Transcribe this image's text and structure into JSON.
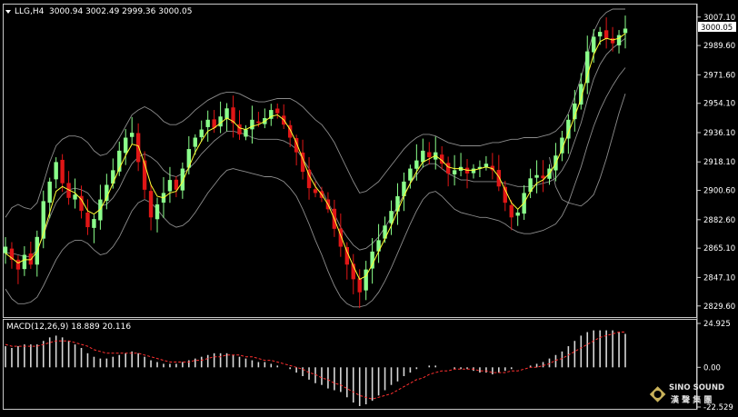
{
  "chart_data": [
    {
      "type": "candlestick",
      "title": "LLG,H4",
      "ohlc_label": "3000.94 3002.49 2999.36 3000.05",
      "current_price_label": "3000.05",
      "ylim": [
        2825,
        3012
      ],
      "y_ticks": [
        "3007.10",
        "2989.60",
        "2971.60",
        "2954.10",
        "2936.10",
        "2918.10",
        "2900.60",
        "2882.60",
        "2865.10",
        "2847.10",
        "2829.60"
      ],
      "close": [
        2866,
        2858,
        2852,
        2861,
        2855,
        2872,
        2894,
        2906,
        2918,
        2905,
        2896,
        2898,
        2888,
        2878,
        2883,
        2895,
        2904,
        2913,
        2925,
        2933,
        2936,
        2918,
        2901,
        2884,
        2892,
        2899,
        2907,
        2901,
        2914,
        2926,
        2933,
        2938,
        2944,
        2939,
        2946,
        2951,
        2942,
        2935,
        2938,
        2944,
        2942,
        2945,
        2950,
        2948,
        2941,
        2933,
        2924,
        2912,
        2902,
        2899,
        2896,
        2889,
        2877,
        2866,
        2855,
        2846,
        2838,
        2852,
        2863,
        2870,
        2879,
        2888,
        2897,
        2906,
        2914,
        2919,
        2925,
        2921,
        2924,
        2917,
        2911,
        2913,
        2915,
        2911,
        2914,
        2915,
        2917,
        2913,
        2903,
        2893,
        2884,
        2887,
        2899,
        2908,
        2910,
        2908,
        2914,
        2922,
        2933,
        2944,
        2954,
        2966,
        2986,
        2995,
        2998,
        2994,
        2991,
        2996,
        3000
      ],
      "ma_yellow": [
        2862,
        2859,
        2856,
        2858,
        2858,
        2863,
        2874,
        2887,
        2900,
        2903,
        2901,
        2899,
        2895,
        2888,
        2886,
        2889,
        2896,
        2905,
        2914,
        2922,
        2929,
        2928,
        2917,
        2904,
        2897,
        2896,
        2899,
        2900,
        2906,
        2915,
        2924,
        2931,
        2937,
        2939,
        2942,
        2945,
        2943,
        2939,
        2938,
        2940,
        2941,
        2943,
        2946,
        2947,
        2944,
        2938,
        2930,
        2920,
        2910,
        2903,
        2898,
        2892,
        2883,
        2873,
        2863,
        2854,
        2846,
        2848,
        2855,
        2863,
        2871,
        2879,
        2888,
        2897,
        2905,
        2912,
        2918,
        2920,
        2922,
        2919,
        2915,
        2914,
        2914,
        2913,
        2913,
        2914,
        2915,
        2914,
        2909,
        2901,
        2893,
        2889,
        2893,
        2900,
        2905,
        2907,
        2911,
        2917,
        2926,
        2936,
        2946,
        2957,
        2971,
        2984,
        2992,
        2994,
        2993,
        2994,
        2997
      ],
      "bb_upper": [
        2884,
        2890,
        2892,
        2890,
        2889,
        2893,
        2905,
        2918,
        2928,
        2932,
        2934,
        2934,
        2933,
        2930,
        2925,
        2922,
        2923,
        2927,
        2933,
        2940,
        2947,
        2950,
        2952,
        2950,
        2947,
        2943,
        2941,
        2941,
        2943,
        2946,
        2950,
        2953,
        2956,
        2958,
        2960,
        2961,
        2961,
        2960,
        2958,
        2956,
        2955,
        2955,
        2956,
        2957,
        2957,
        2957,
        2955,
        2952,
        2948,
        2944,
        2941,
        2936,
        2930,
        2922,
        2914,
        2906,
        2899,
        2900,
        2903,
        2906,
        2911,
        2916,
        2921,
        2926,
        2930,
        2933,
        2935,
        2935,
        2934,
        2932,
        2930,
        2929,
        2928,
        2928,
        2928,
        2928,
        2929,
        2930,
        2930,
        2931,
        2932,
        2932,
        2933,
        2933,
        2933,
        2934,
        2935,
        2937,
        2941,
        2948,
        2958,
        2970,
        2984,
        2998,
        3006,
        3010,
        3012,
        3012,
        3012
      ],
      "bb_lower": [
        2840,
        2834,
        2831,
        2831,
        2832,
        2835,
        2842,
        2850,
        2858,
        2864,
        2868,
        2870,
        2870,
        2868,
        2864,
        2861,
        2862,
        2866,
        2872,
        2880,
        2888,
        2893,
        2895,
        2893,
        2889,
        2884,
        2880,
        2878,
        2879,
        2882,
        2887,
        2893,
        2899,
        2904,
        2909,
        2913,
        2914,
        2913,
        2912,
        2911,
        2910,
        2909,
        2909,
        2908,
        2906,
        2902,
        2897,
        2889,
        2880,
        2870,
        2861,
        2851,
        2842,
        2835,
        2831,
        2829,
        2829,
        2830,
        2833,
        2838,
        2845,
        2853,
        2862,
        2871,
        2880,
        2888,
        2895,
        2899,
        2900,
        2897,
        2893,
        2889,
        2887,
        2886,
        2885,
        2884,
        2884,
        2883,
        2882,
        2880,
        2877,
        2875,
        2874,
        2874,
        2875,
        2876,
        2878,
        2880,
        2885,
        2893,
        2904,
        2915,
        2928,
        2940,
        2950,
        2958,
        2965,
        2971,
        2976
      ],
      "bb_mid": [
        2862,
        2862,
        2861,
        2860,
        2860,
        2864,
        2873,
        2884,
        2893,
        2898,
        2901,
        2902,
        2901,
        2899,
        2894,
        2891,
        2892,
        2896,
        2902,
        2910,
        2917,
        2921,
        2923,
        2921,
        2918,
        2913,
        2910,
        2909,
        2911,
        2914,
        2918,
        2923,
        2927,
        2931,
        2934,
        2937,
        2937,
        2936,
        2935,
        2933,
        2932,
        2932,
        2932,
        2932,
        2931,
        2929,
        2926,
        2920,
        2914,
        2907,
        2901,
        2893,
        2886,
        2878,
        2872,
        2867,
        2864,
        2865,
        2868,
        2872,
        2878,
        2884,
        2891,
        2898,
        2905,
        2910,
        2915,
        2917,
        2917,
        2914,
        2911,
        2909,
        2907,
        2907,
        2906,
        2906,
        2906,
        2906,
        2906,
        2905,
        2904,
        2903,
        2903,
        2903,
        2904,
        2905,
        2906,
        2908,
        2913,
        2920,
        2931,
        2942,
        2956,
        2969,
        2978,
        2984,
        2988,
        2991,
        2994
      ],
      "bb_lower_tail": [
        2921,
        2903,
        2895,
        2893,
        2892,
        2891,
        2894,
        2898,
        2908,
        2920,
        2934,
        2948,
        2960
      ]
    },
    {
      "type": "macd",
      "title": "MACD(12,26,9) 18.889 20.116",
      "ylim": [
        -22.529,
        24.925
      ],
      "y_ticks": [
        "24.925",
        "0.00",
        "-22.529"
      ],
      "macd": [
        12,
        11,
        12,
        13,
        13,
        13,
        15,
        17,
        18,
        17,
        15,
        13,
        11,
        8,
        6,
        5,
        5,
        6,
        7,
        8,
        9,
        8,
        6,
        4,
        3,
        2,
        2,
        2,
        3,
        4,
        5,
        6,
        7,
        8,
        8,
        8,
        7,
        6,
        5,
        4,
        3,
        3,
        2,
        1,
        0,
        -1,
        -3,
        -5,
        -7,
        -9,
        -10,
        -12,
        -13,
        -14,
        -17,
        -20,
        -22,
        -21,
        -19,
        -16,
        -13,
        -10,
        -8,
        -5,
        -3,
        -1,
        0,
        1,
        1,
        0,
        0,
        -1,
        -1,
        -1,
        -2,
        -3,
        -3,
        -4,
        -3,
        -2,
        -1,
        0,
        0,
        1,
        2,
        3,
        5,
        7,
        9,
        12,
        15,
        18,
        20,
        21,
        21,
        21,
        21,
        20,
        19
      ],
      "signal": [
        13,
        12,
        12,
        12,
        12,
        12,
        13,
        14,
        15,
        15,
        15,
        14,
        13,
        12,
        10,
        9,
        8,
        8,
        8,
        8,
        8,
        8,
        7,
        6,
        5,
        4,
        3,
        3,
        3,
        3,
        4,
        4,
        5,
        6,
        6,
        7,
        7,
        7,
        6,
        6,
        5,
        4,
        4,
        3,
        2,
        1,
        0,
        -1,
        -3,
        -4,
        -6,
        -7,
        -9,
        -10,
        -12,
        -14,
        -16,
        -17,
        -18,
        -17,
        -16,
        -15,
        -13,
        -11,
        -9,
        -7,
        -6,
        -4,
        -3,
        -2,
        -2,
        -1,
        -1,
        -1,
        -1,
        -2,
        -2,
        -3,
        -3,
        -3,
        -2,
        -2,
        -1,
        0,
        0,
        1,
        2,
        4,
        5,
        7,
        9,
        11,
        13,
        15,
        17,
        18,
        19,
        20,
        20
      ]
    }
  ],
  "watermark": {
    "brand": "SINO SOUND",
    "cn": "漢 聲 集 團"
  },
  "colors": {
    "bull": "#8bff8b",
    "bear": "#e01616",
    "ma": "#ffff33",
    "bands": "#8c8c8c",
    "macd_hist": "#d8d8d8",
    "macd_signal": "#ff3030"
  }
}
